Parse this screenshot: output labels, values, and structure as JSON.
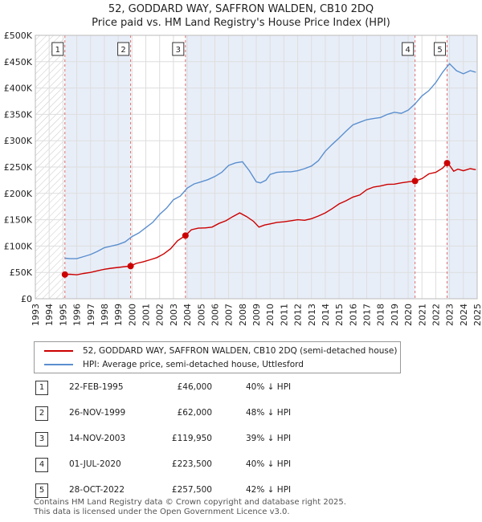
{
  "header": {
    "title": "52, GODDARD WAY, SAFFRON WALDEN, CB10 2DQ",
    "subtitle": "Price paid vs. HM Land Registry's House Price Index (HPI)"
  },
  "colors": {
    "property": "#cc0000",
    "hpi": "#5b8fcf",
    "shade": "#e8eef8",
    "grid": "#dddddd",
    "marker_line": "#e07070"
  },
  "chart_data": {
    "type": "line",
    "title": "52, GODDARD WAY, SAFFRON WALDEN, CB10 2DQ",
    "subtitle": "Price paid vs. HM Land Registry's House Price Index (HPI)",
    "xlim": [
      1993,
      2025
    ],
    "ylim": [
      0,
      500000
    ],
    "y_ticks": [
      0,
      50000,
      100000,
      150000,
      200000,
      250000,
      300000,
      350000,
      400000,
      450000,
      500000
    ],
    "y_tick_labels": [
      "£0",
      "£50K",
      "£100K",
      "£150K",
      "£200K",
      "£250K",
      "£300K",
      "£350K",
      "£400K",
      "£450K",
      "£500K"
    ],
    "x_ticks": [
      1993,
      1994,
      1995,
      1996,
      1997,
      1998,
      1999,
      2000,
      2001,
      2002,
      2003,
      2004,
      2005,
      2006,
      2007,
      2008,
      2009,
      2010,
      2011,
      2012,
      2013,
      2014,
      2015,
      2016,
      2017,
      2018,
      2019,
      2020,
      2021,
      2022,
      2023,
      2024,
      2025
    ],
    "x_tick_labels": [
      "1993",
      "1994",
      "1995",
      "1996",
      "1997",
      "1998",
      "1999",
      "2000",
      "2001",
      "2002",
      "2003",
      "2004",
      "2005",
      "2006",
      "2007",
      "2008",
      "2009",
      "2010",
      "2011",
      "2012",
      "2013",
      "2014",
      "2015",
      "2016",
      "2017",
      "2018",
      "2019",
      "2020",
      "2021",
      "2022",
      "2023",
      "2024",
      "2025"
    ],
    "grid": true,
    "legend_position": "below",
    "series": [
      {
        "name": "52, GODDARD WAY, SAFFRON WALDEN, CB10 2DQ (semi-detached house)",
        "color": "#cc0000",
        "x": [
          1995.14,
          1995.5,
          1996,
          1996.5,
          1997,
          1997.5,
          1998,
          1998.5,
          1999,
          1999.5,
          1999.9,
          2000.3,
          2000.8,
          2001.3,
          2001.8,
          2002.3,
          2002.8,
          2003.3,
          2003.87,
          2004.3,
          2004.8,
          2005.3,
          2005.8,
          2006.3,
          2006.8,
          2007.3,
          2007.8,
          2008.3,
          2008.8,
          2009.2,
          2009.6,
          2010,
          2010.5,
          2011,
          2011.5,
          2012,
          2012.5,
          2013,
          2013.5,
          2014,
          2014.5,
          2015,
          2015.5,
          2016,
          2016.5,
          2017,
          2017.5,
          2018,
          2018.5,
          2019,
          2019.5,
          2020,
          2020.5,
          2021,
          2021.5,
          2022,
          2022.5,
          2022.82,
          2023,
          2023.3,
          2023.6,
          2024,
          2024.5,
          2024.9
        ],
        "y": [
          46000,
          46500,
          45500,
          48000,
          50000,
          53000,
          56000,
          58000,
          59500,
          61000,
          62000,
          67000,
          70000,
          74000,
          78000,
          85000,
          95000,
          110000,
          119950,
          131000,
          134000,
          134500,
          136000,
          143000,
          148000,
          156000,
          163000,
          156000,
          147000,
          136000,
          140000,
          142000,
          145000,
          146000,
          148000,
          150000,
          149000,
          152000,
          157000,
          163000,
          171000,
          180000,
          186000,
          193000,
          197000,
          207000,
          212000,
          214000,
          217000,
          217500,
          220000,
          222000,
          223500,
          228000,
          237000,
          240000,
          248000,
          257500,
          253000,
          242000,
          246000,
          243000,
          247000,
          245000
        ]
      },
      {
        "name": "HPI: Average price, semi-detached house, Uttlesford",
        "color": "#5b8fcf",
        "x": [
          1995.14,
          1995.5,
          1996,
          1996.5,
          1997,
          1997.5,
          1998,
          1998.5,
          1999,
          1999.5,
          2000,
          2000.5,
          2001,
          2001.5,
          2002,
          2002.5,
          2003,
          2003.5,
          2004,
          2004.5,
          2005,
          2005.5,
          2006,
          2006.5,
          2007,
          2007.5,
          2008,
          2008.5,
          2009,
          2009.3,
          2009.7,
          2010,
          2010.5,
          2011,
          2011.5,
          2012,
          2012.5,
          2013,
          2013.5,
          2014,
          2014.5,
          2015,
          2015.5,
          2016,
          2016.5,
          2017,
          2017.5,
          2018,
          2018.5,
          2019,
          2019.5,
          2020,
          2020.5,
          2021,
          2021.5,
          2022,
          2022.5,
          2022.8,
          2023,
          2023.5,
          2024,
          2024.5,
          2024.9
        ],
        "y": [
          77000,
          76000,
          76000,
          80000,
          84000,
          90000,
          97000,
          100000,
          103000,
          108000,
          118000,
          125000,
          135000,
          145000,
          160000,
          172000,
          188000,
          195000,
          210000,
          218000,
          222000,
          226000,
          232000,
          240000,
          253000,
          258000,
          260000,
          243000,
          222000,
          220000,
          225000,
          236000,
          240000,
          241000,
          241000,
          243000,
          247000,
          252000,
          262000,
          280000,
          293000,
          305000,
          318000,
          330000,
          335000,
          340000,
          342000,
          344000,
          350000,
          354000,
          352000,
          358000,
          370000,
          385000,
          395000,
          410000,
          430000,
          440000,
          446000,
          433000,
          427000,
          433000,
          430000
        ]
      }
    ],
    "sales": [
      {
        "n": "1",
        "date": "22-FEB-1995",
        "x": 1995.14,
        "price": 46000,
        "price_label": "£46,000",
        "hpi": "40% ↓ HPI"
      },
      {
        "n": "2",
        "date": "26-NOV-1999",
        "x": 1999.9,
        "price": 62000,
        "price_label": "£62,000",
        "hpi": "48% ↓ HPI"
      },
      {
        "n": "3",
        "date": "14-NOV-2003",
        "x": 2003.87,
        "price": 119950,
        "price_label": "£119,950",
        "hpi": "39% ↓ HPI"
      },
      {
        "n": "4",
        "date": "01-JUL-2020",
        "x": 2020.5,
        "price": 223500,
        "price_label": "£223,500",
        "hpi": "40% ↓ HPI"
      },
      {
        "n": "5",
        "date": "28-OCT-2022",
        "x": 2022.82,
        "price": 257500,
        "price_label": "£257,500",
        "hpi": "42% ↓ HPI"
      }
    ]
  },
  "legend": {
    "property_label": "52, GODDARD WAY, SAFFRON WALDEN, CB10 2DQ (semi-detached house)",
    "hpi_label": "HPI: Average price, semi-detached house, Uttlesford"
  },
  "footer": {
    "line1": "Contains HM Land Registry data © Crown copyright and database right 2025.",
    "line2": "This data is licensed under the Open Government Licence v3.0."
  }
}
